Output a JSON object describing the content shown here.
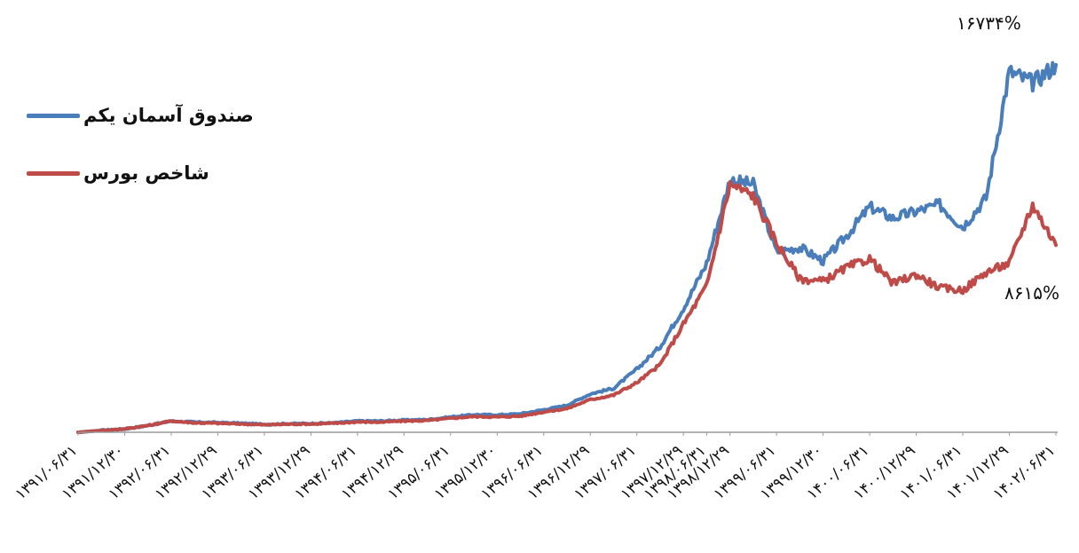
{
  "chart_data": {
    "type": "line",
    "title": "",
    "xlabel": "",
    "ylabel": "",
    "x_tick_labels": [
      "۱۳۹۱/۰۶/۳۱",
      "۱۳۹۱/۱۲/۳۰",
      "۱۳۹۲/۰۶/۳۱",
      "۱۳۹۲/۱۲/۲۹",
      "۱۳۹۳/۰۶/۳۱",
      "۱۳۹۳/۱۲/۲۹",
      "۱۳۹۴/۰۶/۳۱",
      "۱۳۹۴/۱۲/۲۹",
      "۱۳۹۵/۰۶/۳۱",
      "۱۳۹۵/۱۲/۳۰",
      "۱۳۹۶/۰۶/۳۱",
      "۱۳۹۶/۱۲/۲۹",
      "۱۳۹۷/۰۶/۳۱",
      "۱۳۹۷/۱۲/۲۹",
      "۱۳۹۸/۰۶/۳۱",
      "۱۳۹۸/۱۲/۲۹",
      "۱۳۹۹/۰۶/۳۱",
      "۱۳۹۹/۱۲/۳۰",
      "۱۴۰۰/۰۶/۳۱",
      "۱۴۰۰/۱۲/۲۹",
      "۱۴۰۱/۰۶/۳۱",
      "۱۴۰۱/۱۲/۲۹",
      "۱۴۰۲/۰۶/۳۱"
    ],
    "x_tick_index": [
      0,
      2,
      4,
      6,
      8,
      10,
      12,
      14,
      16,
      18,
      20,
      22,
      24,
      26,
      27,
      28,
      30,
      32,
      34,
      36,
      38,
      40,
      42
    ],
    "x_range": [
      0,
      42
    ],
    "ylim": [
      0,
      17600
    ],
    "legend_position": "top-left",
    "grid": false,
    "series": [
      {
        "name": "صندوق آسمان یکم",
        "color": "#4A7EBB",
        "points": [
          [
            0,
            0
          ],
          [
            1,
            80
          ],
          [
            2,
            150
          ],
          [
            3,
            300
          ],
          [
            4,
            500
          ],
          [
            5,
            450
          ],
          [
            6,
            430
          ],
          [
            7,
            400
          ],
          [
            8,
            350
          ],
          [
            9,
            380
          ],
          [
            10,
            390
          ],
          [
            11,
            420
          ],
          [
            12,
            500
          ],
          [
            13,
            500
          ],
          [
            14,
            540
          ],
          [
            15,
            560
          ],
          [
            16,
            680
          ],
          [
            17,
            780
          ],
          [
            18,
            770
          ],
          [
            19,
            820
          ],
          [
            20,
            1000
          ],
          [
            21,
            1200
          ],
          [
            22,
            1700
          ],
          [
            23,
            1950
          ],
          [
            24,
            2800
          ],
          [
            25,
            3800
          ],
          [
            26,
            5500
          ],
          [
            27,
            7500
          ],
          [
            28,
            11200
          ],
          [
            29,
            11000
          ],
          [
            30,
            8000
          ],
          [
            31,
            8200
          ],
          [
            32,
            7600
          ],
          [
            33,
            8700
          ],
          [
            34,
            10000
          ],
          [
            35,
            9500
          ],
          [
            36,
            9800
          ],
          [
            37,
            10100
          ],
          [
            38,
            9100
          ],
          [
            39,
            10400
          ],
          [
            40,
            16000
          ],
          [
            41,
            15500
          ],
          [
            42,
            16300
          ]
        ],
        "end_label": "۱۶۷۳۴%"
      },
      {
        "name": "شاخص بورس",
        "color": "#BE4B48",
        "points": [
          [
            0,
            0
          ],
          [
            1,
            80
          ],
          [
            2,
            150
          ],
          [
            3,
            300
          ],
          [
            4,
            500
          ],
          [
            5,
            420
          ],
          [
            6,
            400
          ],
          [
            7,
            370
          ],
          [
            8,
            330
          ],
          [
            9,
            360
          ],
          [
            10,
            370
          ],
          [
            11,
            400
          ],
          [
            12,
            460
          ],
          [
            13,
            450
          ],
          [
            14,
            500
          ],
          [
            15,
            520
          ],
          [
            16,
            620
          ],
          [
            17,
            700
          ],
          [
            18,
            680
          ],
          [
            19,
            720
          ],
          [
            20,
            900
          ],
          [
            21,
            1050
          ],
          [
            22,
            1450
          ],
          [
            23,
            1650
          ],
          [
            24,
            2200
          ],
          [
            25,
            3000
          ],
          [
            26,
            4800
          ],
          [
            27,
            6500
          ],
          [
            28,
            11000
          ],
          [
            29,
            10500
          ],
          [
            30,
            8400
          ],
          [
            31,
            6800
          ],
          [
            32,
            6700
          ],
          [
            33,
            7300
          ],
          [
            34,
            7700
          ],
          [
            35,
            6600
          ],
          [
            36,
            7000
          ],
          [
            37,
            6400
          ],
          [
            38,
            6300
          ],
          [
            39,
            7100
          ],
          [
            40,
            7500
          ],
          [
            41,
            10100
          ],
          [
            42,
            8300
          ]
        ],
        "end_label": "۸۶۱۵%"
      }
    ]
  }
}
